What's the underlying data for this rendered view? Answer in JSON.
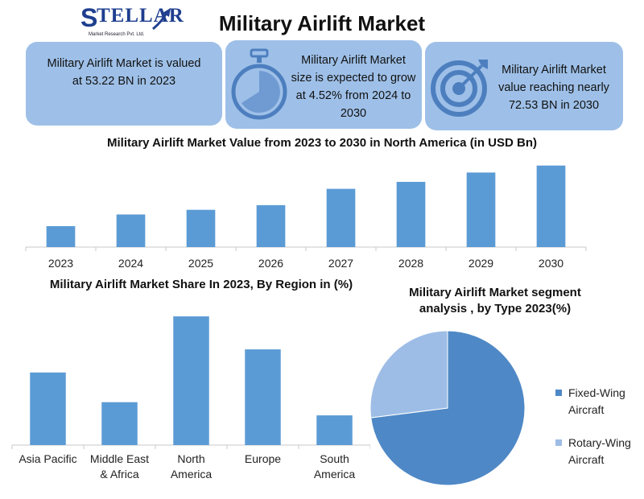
{
  "header": {
    "logo_word": "TELLAR",
    "logo_sub": "Market Research Pvt. Ltd.",
    "title": "Military Airlift Market"
  },
  "cards": {
    "valued": "Military Airlift Market is valued at 53.22 BN in 2023",
    "growth": "Military Airlift Market size is expected to grow at 4.52% from 2024 to 2030",
    "reaching": "Military Airlift Market value reaching nearly 72.53 BN in 2030"
  },
  "icons": {
    "card2": "stopwatch-icon",
    "card3": "target-icon",
    "logo": "arrow-swoosh-icon"
  },
  "colors": {
    "bar": "#5b9bd5",
    "card": "#9ec0e8",
    "pie_fixed": "#4f88c6",
    "pie_rotary": "#9dbde6"
  },
  "chart_data": [
    {
      "type": "bar",
      "title": "Military Airlift  Market Value from 2023 to 2030 in North America (in USD Bn)",
      "categories": [
        "2023",
        "2024",
        "2025",
        "2026",
        "2027",
        "2028",
        "2029",
        "2030"
      ],
      "values": [
        9,
        14,
        16,
        18,
        25,
        28,
        32,
        35
      ],
      "ylim": [
        0,
        38
      ],
      "grid": false
    },
    {
      "type": "bar",
      "title": "Military Airlift Market Share In 2023, By Region in (%)",
      "categories": [
        "Asia Pacific",
        "Middle East & Africa",
        "North America",
        "Europe",
        "South America"
      ],
      "values": [
        22,
        13,
        39,
        29,
        9
      ],
      "ylim": [
        0,
        40
      ],
      "grid": false
    },
    {
      "type": "pie",
      "title": "Military Airlift  Market segment analysis , by  Type 2023(%)",
      "labels": [
        "Fixed-Wing Aircraft",
        "Rotary-Wing Aircraft"
      ],
      "values": [
        73,
        27
      ],
      "legend": "right"
    }
  ]
}
